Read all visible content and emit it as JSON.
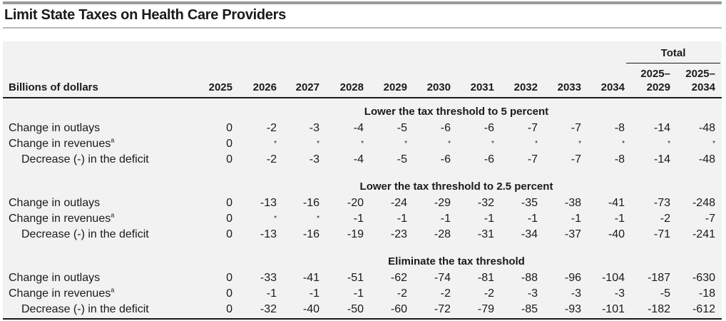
{
  "title": "Limit State Taxes on Health Care Providers",
  "header": {
    "unit_label": "Billions of dollars",
    "total_label": "Total",
    "years": [
      "2025",
      "2026",
      "2027",
      "2028",
      "2029",
      "2030",
      "2031",
      "2032",
      "2033",
      "2034"
    ],
    "total_cols": [
      {
        "line1": "2025–",
        "line2": "2029"
      },
      {
        "line1": "2025–",
        "line2": "2034"
      }
    ]
  },
  "sections": [
    {
      "title": "Lower the tax threshold to 5 percent",
      "rows": [
        {
          "label": "Change in outlays",
          "sup": "",
          "values": [
            "0",
            "-2",
            "-3",
            "-4",
            "-5",
            "-6",
            "-6",
            "-7",
            "-7",
            "-8",
            "-14",
            "-48"
          ]
        },
        {
          "label": "Change in revenues",
          "sup": "a",
          "values": [
            "0",
            "*",
            "*",
            "*",
            "*",
            "*",
            "*",
            "*",
            "*",
            "*",
            "*",
            "*"
          ]
        },
        {
          "label": "Decrease (-) in the deficit",
          "sup": "",
          "values": [
            "0",
            "-2",
            "-3",
            "-4",
            "-5",
            "-6",
            "-6",
            "-7",
            "-7",
            "-8",
            "-14",
            "-48"
          ]
        }
      ]
    },
    {
      "title": "Lower the tax threshold to 2.5 percent",
      "rows": [
        {
          "label": "Change in outlays",
          "sup": "",
          "values": [
            "0",
            "-13",
            "-16",
            "-20",
            "-24",
            "-29",
            "-32",
            "-35",
            "-38",
            "-41",
            "-73",
            "-248"
          ]
        },
        {
          "label": "Change in revenues",
          "sup": "a",
          "values": [
            "0",
            "*",
            "*",
            "-1",
            "-1",
            "-1",
            "-1",
            "-1",
            "-1",
            "-1",
            "-2",
            "-7"
          ]
        },
        {
          "label": "Decrease (-) in the deficit",
          "sup": "",
          "values": [
            "0",
            "-13",
            "-16",
            "-19",
            "-23",
            "-28",
            "-31",
            "-34",
            "-37",
            "-40",
            "-71",
            "-241"
          ]
        }
      ]
    },
    {
      "title": "Eliminate the tax threshold",
      "rows": [
        {
          "label": "Change in outlays",
          "sup": "",
          "values": [
            "0",
            "-33",
            "-41",
            "-51",
            "-62",
            "-74",
            "-81",
            "-88",
            "-96",
            "-104",
            "-187",
            "-630"
          ]
        },
        {
          "label": "Change in revenues",
          "sup": "a",
          "values": [
            "0",
            "-1",
            "-1",
            "-1",
            "-2",
            "-2",
            "-2",
            "-3",
            "-3",
            "-3",
            "-5",
            "-18"
          ]
        },
        {
          "label": "Decrease (-) in the deficit",
          "sup": "",
          "values": [
            "0",
            "-32",
            "-40",
            "-50",
            "-60",
            "-72",
            "-79",
            "-85",
            "-93",
            "-101",
            "-182",
            "-612"
          ]
        }
      ]
    }
  ]
}
